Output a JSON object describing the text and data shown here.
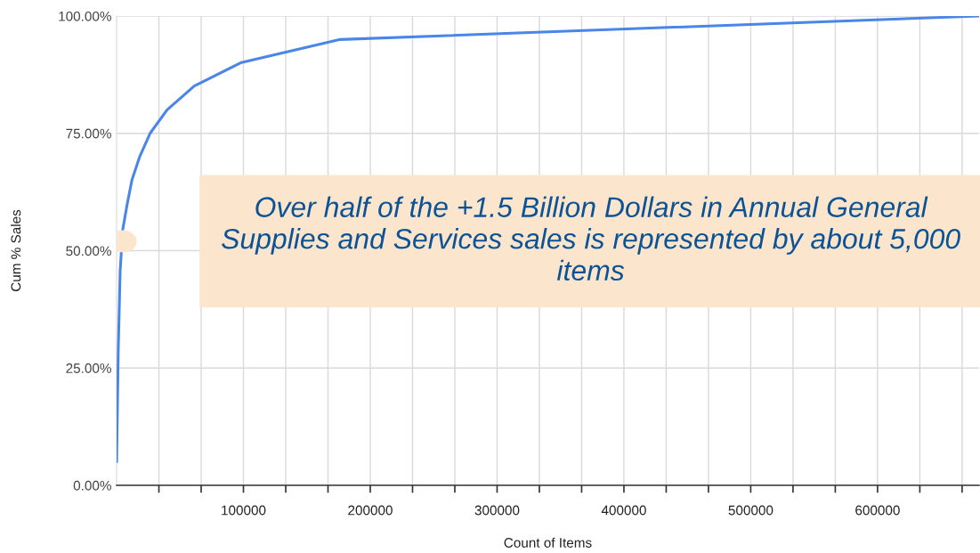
{
  "chart_data": {
    "type": "line",
    "x": [
      0,
      1300,
      2800,
      4900,
      8400,
      12100,
      18300,
      26600,
      39800,
      61200,
      98400,
      176300,
      680000
    ],
    "series": [
      {
        "color": "#4a86e8",
        "values": [
          5.1,
          28.8,
          45.8,
          54.6,
          60,
          65.1,
          70.1,
          75.1,
          80,
          85.1,
          90.1,
          95,
          100
        ]
      }
    ],
    "xlabel": "Count of Items",
    "ylabel": "Cum % Sales",
    "xlim": [
      0,
      680000
    ],
    "xticks": [
      {
        "value": 33333.33,
        "label": null
      },
      {
        "value": 66666.67,
        "label": null
      },
      100000,
      {
        "value": 133333.33,
        "label": null
      },
      {
        "value": 166666.67,
        "label": null
      },
      200000,
      {
        "value": 233333.33,
        "label": null
      },
      {
        "value": 266666.67,
        "label": null
      },
      300000,
      {
        "value": 333333.33,
        "label": null
      },
      {
        "value": 366666.67,
        "label": null
      },
      400000,
      {
        "value": 433333.33,
        "label": null
      },
      {
        "value": 466666.67,
        "label": null
      },
      500000,
      {
        "value": 533333.33,
        "label": null
      },
      {
        "value": 566666.67,
        "label": null
      },
      600000,
      {
        "value": 633333.33,
        "label": null
      },
      {
        "value": 666666.67,
        "label": null
      }
    ],
    "ylim": [
      0,
      100
    ],
    "yticks": [
      {
        "value": 0,
        "label": "0.00%"
      },
      {
        "value": 25,
        "label": "25.00%"
      },
      {
        "value": 50,
        "label": "50.00%"
      },
      {
        "value": 75,
        "label": "75.00%"
      },
      {
        "value": 100,
        "label": "100.00%"
      }
    ],
    "grid": true,
    "marker": "none",
    "line_style": "solid",
    "legend": false,
    "annotations": [
      "Over half of the +1.5 Billion Dollars in Annual General Supplies and Services sales is represented by about 5,000 items"
    ]
  }
}
